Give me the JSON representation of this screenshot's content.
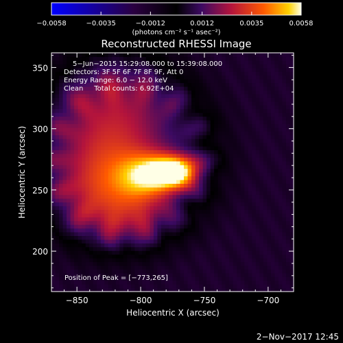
{
  "chart_data": {
    "type": "heatmap",
    "title": "Reconstructed RHESSI Image",
    "xlabel": "Heliocentric X (arcsec)",
    "ylabel": "Heliocentric Y (arcsec)",
    "xlim": [
      -870,
      -680
    ],
    "ylim": [
      167,
      362
    ],
    "x_ticks": [
      -850,
      -800,
      -750,
      -700
    ],
    "y_ticks": [
      200,
      250,
      300,
      350
    ],
    "x_tick_labels": [
      "−850",
      "−800",
      "−750",
      "−700"
    ],
    "y_tick_labels": [
      "200",
      "250",
      "300",
      "350"
    ],
    "colorbar": {
      "range": [
        -0.0058,
        0.0058
      ],
      "ticks": [
        -0.0058,
        -0.0035,
        -0.0012,
        0.0012,
        0.0035,
        0.0058
      ],
      "tick_labels": [
        "−0.0058",
        "−0.0035",
        "−0.0012",
        "0.0012",
        "0.0035",
        "0.0058"
      ],
      "units_label": "(photons cm⁻² s⁻¹ asec⁻²)"
    },
    "annotations": [
      "5−Jun−2015 15:29:08.000 to 15:39:08.000",
      "Detectors: 3F 5F 6F 7F 8F 9F, Att 0",
      "Energy Range: 6.0 − 12.0 keV",
      "Clean     Total counts: 6.92E+04"
    ],
    "peak_label": "Position of Peak = [−773,265]",
    "peak": [
      -773,
      265
    ],
    "timestamp": "2−Nov−2017 12:45",
    "sources": [
      {
        "x": -773,
        "y": 265,
        "sx": 13,
        "sy": 9,
        "amp": 0.0058
      },
      {
        "x": -795,
        "y": 262,
        "sx": 16,
        "sy": 13,
        "amp": 0.0034
      },
      {
        "x": -820,
        "y": 300,
        "sx": 32,
        "sy": 42,
        "amp": 0.0026
      },
      {
        "x": -832,
        "y": 248,
        "sx": 24,
        "sy": 28,
        "amp": 0.0021
      },
      {
        "x": -800,
        "y": 230,
        "sx": 20,
        "sy": 18,
        "amp": 0.0013
      }
    ],
    "background_level": -0.0016
  }
}
